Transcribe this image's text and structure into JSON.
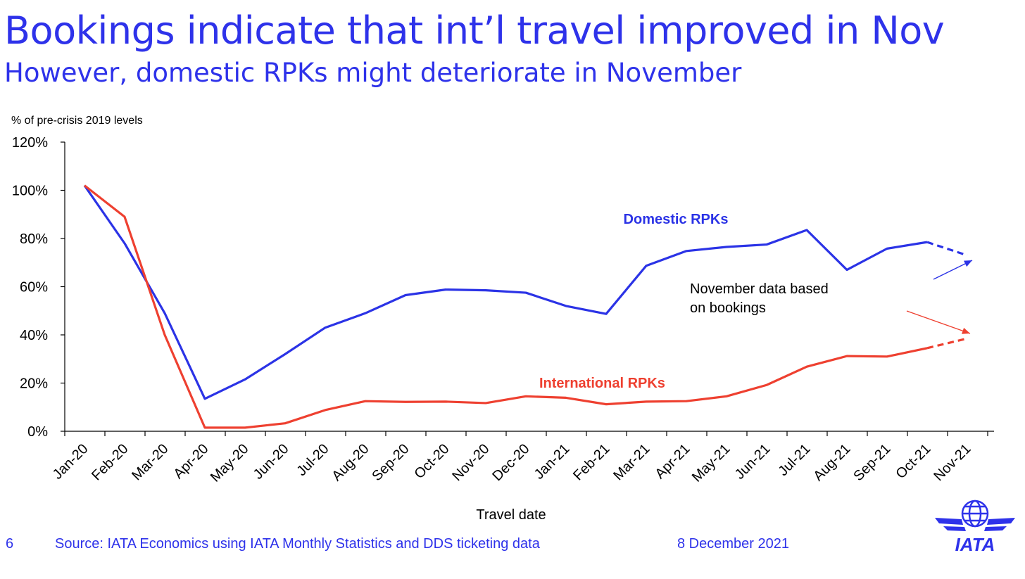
{
  "slide": {
    "title": "Bookings indicate that int’l travel improved in Nov",
    "subtitle": "However, domestic RPKs might deteriorate in November",
    "page_number": "6",
    "source": "Source: IATA Economics using IATA Monthly Statistics and DDS ticketing data",
    "date": "8 December 2021",
    "logo_text": "IATA"
  },
  "colors": {
    "accent": "#2e32ea",
    "domestic": "#2b33e6",
    "international": "#ee4030",
    "axis": "#000000"
  },
  "chart_data": {
    "type": "line",
    "title": "",
    "ylabel": "% of pre-crisis 2019 levels",
    "xlabel": "Travel date",
    "ylim": [
      0,
      120
    ],
    "yticks": [
      "0%",
      "20%",
      "40%",
      "60%",
      "80%",
      "100%",
      "120%"
    ],
    "categories": [
      "Jan-20",
      "Feb-20",
      "Mar-20",
      "Apr-20",
      "May-20",
      "Jun-20",
      "Jul-20",
      "Aug-20",
      "Sep-20",
      "Oct-20",
      "Nov-20",
      "Dec-20",
      "Jan-21",
      "Feb-21",
      "Mar-21",
      "Apr-21",
      "May-21",
      "Jun-21",
      "Jul-21",
      "Aug-21",
      "Sep-21",
      "Oct-21",
      "Nov-21"
    ],
    "grid": false,
    "series": [
      {
        "name": "Domestic RPKs",
        "values": [
          102,
          78,
          49,
          13.5,
          21.5,
          32,
          43,
          49,
          56.5,
          58.8,
          58.5,
          57.5,
          52,
          48.7,
          68.7,
          74.8,
          76.5,
          77.5,
          83.5,
          67,
          75.8,
          78.5,
          73
        ],
        "dashed_from": "Oct-21"
      },
      {
        "name": "International RPKs",
        "values": [
          102,
          89,
          40,
          1.5,
          1.5,
          3.3,
          8.8,
          12.5,
          12.2,
          12.3,
          11.7,
          14.5,
          13.9,
          11.2,
          12.3,
          12.5,
          14.5,
          19.2,
          26.8,
          31.2,
          31,
          34.5,
          38.5
        ],
        "dashed_from": "Oct-21"
      }
    ],
    "annotations": [
      "November data based",
      "on bookings"
    ]
  }
}
